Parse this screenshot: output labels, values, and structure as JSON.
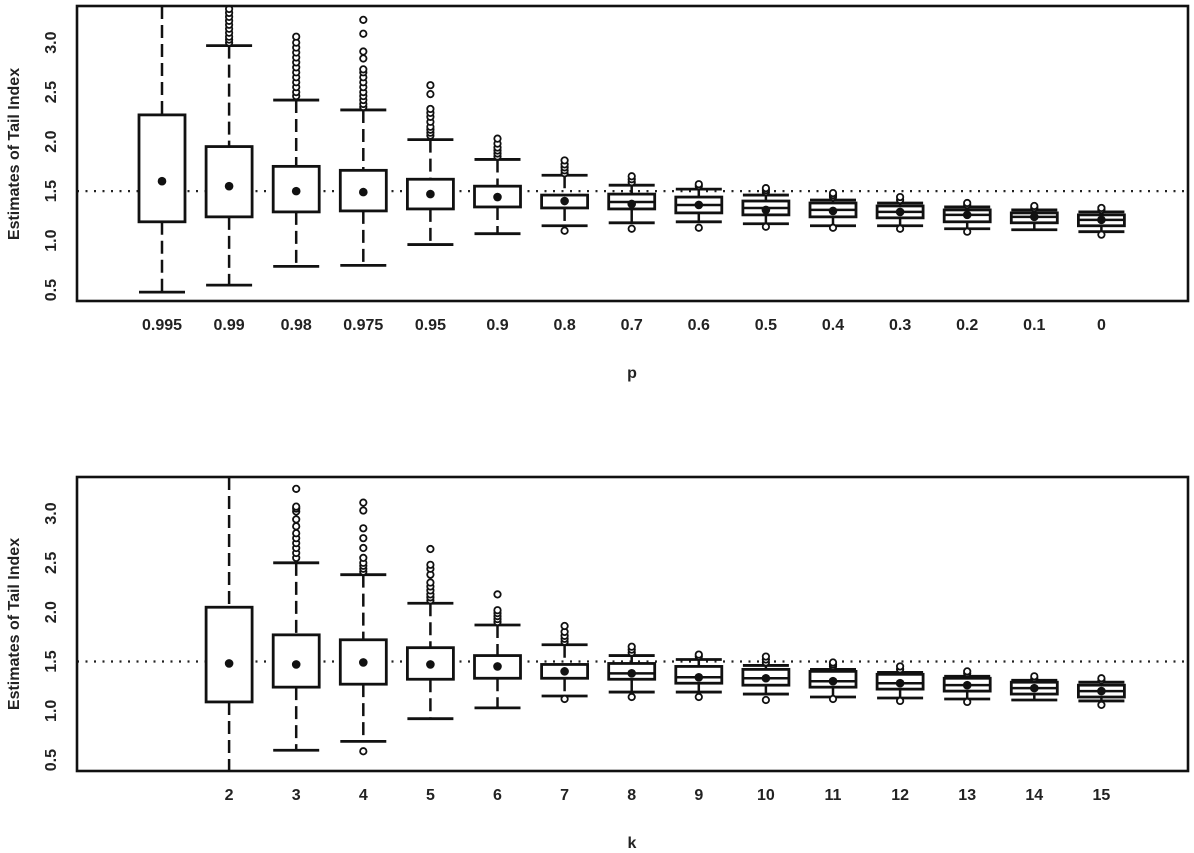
{
  "chart_data": [
    {
      "type": "boxplot",
      "title": "",
      "xlabel": "p",
      "ylabel": "Estimates of Tail Index",
      "ylim": [
        0.39,
        3.37
      ],
      "yticks": [
        "0.5",
        "1.0",
        "1.5",
        "2.0",
        "2.5",
        "3.0"
      ],
      "reference_line": 1.5,
      "categories": [
        "0.995",
        "0.99",
        "0.98",
        "0.975",
        "0.95",
        "0.9",
        "0.8",
        "0.7",
        "0.6",
        "0.5",
        "0.4",
        "0.3",
        "0.2",
        "0.1",
        "0"
      ],
      "boxes": [
        {
          "lw": 0.48,
          "q1": 1.19,
          "q3": 2.27,
          "uw": 3.6,
          "mean": 1.6,
          "median": null,
          "out": []
        },
        {
          "lw": 0.55,
          "q1": 1.24,
          "q3": 1.95,
          "uw": 2.97,
          "mean": 1.55,
          "median": null,
          "out": [
            3.0,
            3.03,
            3.06,
            3.1,
            3.14,
            3.18,
            3.22,
            3.26,
            3.3,
            3.34
          ]
        },
        {
          "lw": 0.74,
          "q1": 1.29,
          "q3": 1.75,
          "uw": 2.42,
          "mean": 1.5,
          "median": null,
          "out": [
            2.46,
            2.5,
            2.55,
            2.6,
            2.65,
            2.7,
            2.75,
            2.8,
            2.85,
            2.9,
            2.95,
            3.0,
            3.06
          ]
        },
        {
          "lw": 0.75,
          "q1": 1.3,
          "q3": 1.71,
          "uw": 2.32,
          "mean": 1.49,
          "median": null,
          "out": [
            2.35,
            2.38,
            2.42,
            2.46,
            2.5,
            2.55,
            2.6,
            2.65,
            2.7,
            2.73,
            2.84,
            2.91,
            3.09,
            3.23
          ]
        },
        {
          "lw": 0.96,
          "q1": 1.32,
          "q3": 1.62,
          "uw": 2.02,
          "mean": 1.47,
          "median": null,
          "out": [
            2.06,
            2.09,
            2.12,
            2.15,
            2.2,
            2.25,
            2.29,
            2.33,
            2.48,
            2.57
          ]
        },
        {
          "lw": 1.07,
          "q1": 1.34,
          "q3": 1.55,
          "uw": 1.82,
          "mean": 1.44,
          "median": null,
          "out": [
            1.85,
            1.88,
            1.91,
            1.94,
            1.98,
            2.03
          ]
        },
        {
          "lw": 1.15,
          "q1": 1.33,
          "q3": 1.46,
          "uw": 1.66,
          "mean": 1.4,
          "median": null,
          "out": [
            1.68,
            1.71,
            1.74,
            1.77,
            1.81,
            1.1
          ]
        },
        {
          "lw": 1.18,
          "q1": 1.32,
          "q3": 1.47,
          "uw": 1.56,
          "mean": 1.37,
          "median": 1.39,
          "out": [
            1.59,
            1.62,
            1.65,
            1.12
          ]
        },
        {
          "lw": 1.19,
          "q1": 1.28,
          "q3": 1.44,
          "uw": 1.52,
          "mean": 1.36,
          "median": 1.36,
          "out": [
            1.55,
            1.57,
            1.13
          ]
        },
        {
          "lw": 1.17,
          "q1": 1.26,
          "q3": 1.4,
          "uw": 1.46,
          "mean": 1.31,
          "median": 1.33,
          "out": [
            1.49,
            1.51,
            1.53,
            1.14
          ]
        },
        {
          "lw": 1.15,
          "q1": 1.24,
          "q3": 1.38,
          "uw": 1.41,
          "mean": 1.3,
          "median": 1.31,
          "out": [
            1.44,
            1.46,
            1.48,
            1.13
          ]
        },
        {
          "lw": 1.15,
          "q1": 1.23,
          "q3": 1.35,
          "uw": 1.38,
          "mean": 1.29,
          "median": 1.29,
          "out": [
            1.41,
            1.44,
            1.12
          ]
        },
        {
          "lw": 1.12,
          "q1": 1.19,
          "q3": 1.31,
          "uw": 1.34,
          "mean": 1.26,
          "median": 1.26,
          "out": [
            1.36,
            1.38,
            1.09
          ]
        },
        {
          "lw": 1.11,
          "q1": 1.18,
          "q3": 1.28,
          "uw": 1.31,
          "mean": 1.24,
          "median": 1.24,
          "out": [
            1.33,
            1.35
          ]
        },
        {
          "lw": 1.09,
          "q1": 1.15,
          "q3": 1.26,
          "uw": 1.29,
          "mean": 1.21,
          "median": 1.21,
          "out": [
            1.31,
            1.33,
            1.06
          ]
        }
      ]
    },
    {
      "type": "boxplot",
      "title": "",
      "xlabel": "k",
      "ylabel": "Estimates of Tail Index",
      "ylim": [
        0.39,
        3.37
      ],
      "yticks": [
        "0.5",
        "1.0",
        "1.5",
        "2.0",
        "2.5",
        "3.0"
      ],
      "reference_line": 1.5,
      "categories": [
        "",
        "2",
        "3",
        "4",
        "5",
        "6",
        "7",
        "8",
        "9",
        "10",
        "11",
        "12",
        "13",
        "14",
        "15"
      ],
      "boxes": [
        null,
        {
          "lw": 0.0,
          "q1": 1.09,
          "q3": 2.05,
          "uw": 3.6,
          "mean": 1.48,
          "median": null,
          "out": []
        },
        {
          "lw": 0.6,
          "q1": 1.24,
          "q3": 1.77,
          "uw": 2.5,
          "mean": 1.47,
          "median": null,
          "out": [
            2.55,
            2.6,
            2.65,
            2.7,
            2.75,
            2.8,
            2.87,
            2.94,
            3.02,
            3.05,
            3.07,
            3.25
          ]
        },
        {
          "lw": 0.69,
          "q1": 1.27,
          "q3": 1.72,
          "uw": 2.38,
          "mean": 1.49,
          "median": null,
          "out": [
            2.41,
            2.44,
            2.47,
            2.5,
            2.55,
            2.65,
            2.75,
            2.85,
            3.03,
            3.11,
            0.59
          ]
        },
        {
          "lw": 0.92,
          "q1": 1.32,
          "q3": 1.64,
          "uw": 2.09,
          "mean": 1.47,
          "median": null,
          "out": [
            2.12,
            2.15,
            2.18,
            2.22,
            2.26,
            2.3,
            2.38,
            2.44,
            2.48,
            2.64
          ]
        },
        {
          "lw": 1.03,
          "q1": 1.33,
          "q3": 1.56,
          "uw": 1.87,
          "mean": 1.45,
          "median": null,
          "out": [
            1.9,
            1.93,
            1.96,
            1.99,
            2.02,
            2.18
          ]
        },
        {
          "lw": 1.15,
          "q1": 1.33,
          "q3": 1.47,
          "uw": 1.67,
          "mean": 1.4,
          "median": null,
          "out": [
            1.7,
            1.73,
            1.76,
            1.8,
            1.86,
            1.12
          ]
        },
        {
          "lw": 1.19,
          "q1": 1.32,
          "q3": 1.48,
          "uw": 1.56,
          "mean": 1.38,
          "median": 1.38,
          "out": [
            1.59,
            1.62,
            1.65,
            1.14
          ]
        },
        {
          "lw": 1.19,
          "q1": 1.28,
          "q3": 1.45,
          "uw": 1.52,
          "mean": 1.34,
          "median": 1.34,
          "out": [
            1.55,
            1.57,
            1.14
          ]
        },
        {
          "lw": 1.17,
          "q1": 1.26,
          "q3": 1.42,
          "uw": 1.46,
          "mean": 1.33,
          "median": 1.33,
          "out": [
            1.49,
            1.52,
            1.55,
            1.11
          ]
        },
        {
          "lw": 1.14,
          "q1": 1.24,
          "q3": 1.4,
          "uw": 1.42,
          "mean": 1.3,
          "median": 1.3,
          "out": [
            1.45,
            1.47,
            1.49,
            1.12
          ]
        },
        {
          "lw": 1.13,
          "q1": 1.22,
          "q3": 1.37,
          "uw": 1.39,
          "mean": 1.28,
          "median": 1.28,
          "out": [
            1.42,
            1.45,
            1.1
          ]
        },
        {
          "lw": 1.12,
          "q1": 1.2,
          "q3": 1.33,
          "uw": 1.35,
          "mean": 1.26,
          "median": 1.26,
          "out": [
            1.38,
            1.4,
            1.09
          ]
        },
        {
          "lw": 1.11,
          "q1": 1.17,
          "q3": 1.29,
          "uw": 1.31,
          "mean": 1.23,
          "median": 1.23,
          "out": [
            1.33,
            1.35
          ]
        },
        {
          "lw": 1.1,
          "q1": 1.14,
          "q3": 1.26,
          "uw": 1.29,
          "mean": 1.2,
          "median": 1.2,
          "out": [
            1.31,
            1.33,
            1.06
          ]
        }
      ]
    }
  ]
}
